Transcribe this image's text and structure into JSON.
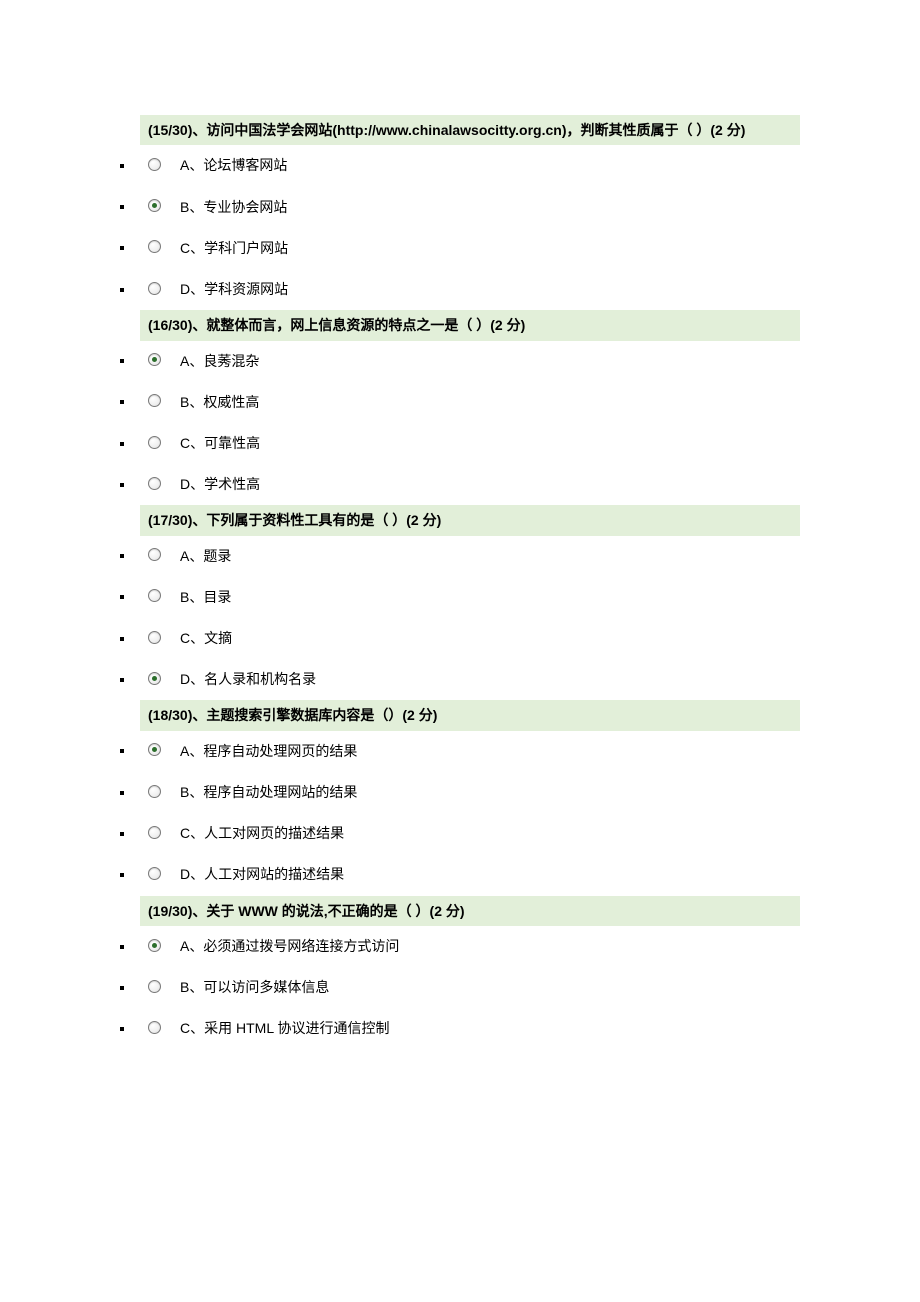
{
  "page": {
    "background_color": "#ffffff",
    "header_bg": "#e2efd9",
    "text_color": "#000000",
    "font_family": "Microsoft YaHei",
    "font_size_pt": 10.5
  },
  "questions": [
    {
      "header": "(15/30)、访问中国法学会网站(http://www.chinalawsocitty.org.cn)，判断其性质属于（ ）(2 分)",
      "options": [
        {
          "label": "A、论坛博客网站",
          "selected": false
        },
        {
          "label": "B、专业协会网站",
          "selected": true
        },
        {
          "label": "C、学科门户网站",
          "selected": false
        },
        {
          "label": "D、学科资源网站",
          "selected": false
        }
      ]
    },
    {
      "header": "(16/30)、就整体而言，网上信息资源的特点之一是（ ）(2 分)",
      "options": [
        {
          "label": "A、良莠混杂",
          "selected": true
        },
        {
          "label": "B、权威性高",
          "selected": false
        },
        {
          "label": "C、可靠性高",
          "selected": false
        },
        {
          "label": "D、学术性高",
          "selected": false
        }
      ]
    },
    {
      "header": "(17/30)、下列属于资料性工具有的是（ ）(2 分)",
      "options": [
        {
          "label": "A、题录",
          "selected": false
        },
        {
          "label": "B、目录",
          "selected": false
        },
        {
          "label": "C、文摘",
          "selected": false
        },
        {
          "label": "D、名人录和机构名录",
          "selected": true
        }
      ]
    },
    {
      "header": "(18/30)、主题搜索引擎数据库内容是（）(2 分)",
      "options": [
        {
          "label": "A、程序自动处理网页的结果",
          "selected": true
        },
        {
          "label": "B、程序自动处理网站的结果",
          "selected": false
        },
        {
          "label": "C、人工对网页的描述结果",
          "selected": false
        },
        {
          "label": "D、人工对网站的描述结果",
          "selected": false
        }
      ]
    },
    {
      "header": "(19/30)、关于 WWW 的说法,不正确的是（ ）(2 分)",
      "options": [
        {
          "label": "A、必须通过拨号网络连接方式访问",
          "selected": true
        },
        {
          "label": "B、可以访问多媒体信息",
          "selected": false
        },
        {
          "label": "C、采用 HTML 协议进行通信控制",
          "selected": false
        }
      ]
    }
  ]
}
